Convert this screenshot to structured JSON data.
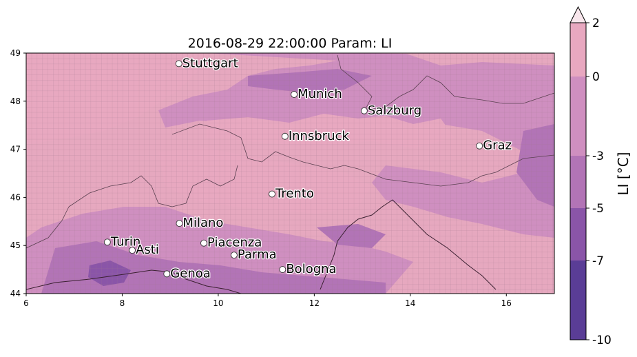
{
  "title": "2016-08-29 22:00:00 Param: LI",
  "map": {
    "lon_range": [
      6,
      17
    ],
    "lat_range": [
      44,
      49
    ],
    "x_ticks": [
      "6",
      "8",
      "10",
      "12",
      "14",
      "16"
    ],
    "y_ticks": [
      "44",
      "45",
      "46",
      "47",
      "48",
      "49"
    ],
    "cities": [
      {
        "name": "Stuttgart",
        "lon": 9.18,
        "lat": 48.78
      },
      {
        "name": "Munich",
        "lon": 11.58,
        "lat": 48.14
      },
      {
        "name": "Salzburg",
        "lon": 13.04,
        "lat": 47.8
      },
      {
        "name": "Innsbruck",
        "lon": 11.39,
        "lat": 47.27
      },
      {
        "name": "Graz",
        "lon": 15.44,
        "lat": 47.07
      },
      {
        "name": "Trento",
        "lon": 11.12,
        "lat": 46.07
      },
      {
        "name": "Milano",
        "lon": 9.19,
        "lat": 45.46
      },
      {
        "name": "Turin",
        "lon": 7.69,
        "lat": 45.07
      },
      {
        "name": "Piacenza",
        "lon": 9.7,
        "lat": 45.05
      },
      {
        "name": "Asti",
        "lon": 8.21,
        "lat": 44.9
      },
      {
        "name": "Parma",
        "lon": 10.33,
        "lat": 44.8
      },
      {
        "name": "Bologna",
        "lon": 11.34,
        "lat": 44.5
      },
      {
        "name": "Genoa",
        "lon": 8.93,
        "lat": 44.41
      }
    ]
  },
  "colorbar": {
    "label": "LI  [°C]",
    "tick_labels": [
      "2",
      "0",
      "-3",
      "-5",
      "-7",
      "-10"
    ],
    "levels": [
      -10,
      -7,
      -5,
      -3,
      0,
      2
    ],
    "colors": [
      "#5a3d96",
      "#8a55a8",
      "#b274b6",
      "#cf8fc0",
      "#e8a8c0"
    ],
    "extend_color": "#f8e6ec"
  }
}
